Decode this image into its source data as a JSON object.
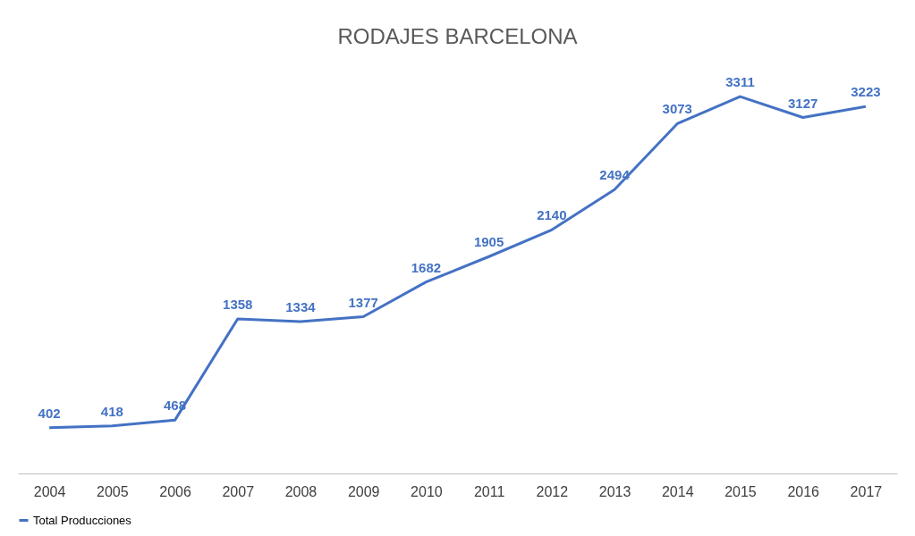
{
  "chart_data": {
    "type": "line",
    "title": "RODAJES BARCELONA",
    "categories": [
      "2004",
      "2005",
      "2006",
      "2007",
      "2008",
      "2009",
      "2010",
      "2011",
      "2012",
      "2013",
      "2014",
      "2015",
      "2016",
      "2017"
    ],
    "series": [
      {
        "name": "Total Producciones",
        "color": "#4472c4",
        "values": [
          402,
          418,
          468,
          1358,
          1334,
          1377,
          1682,
          1905,
          2140,
          2494,
          3073,
          3311,
          3127,
          3223
        ]
      }
    ],
    "data_labels": true,
    "legend": "bottom",
    "grid": false,
    "marker": "none",
    "line_style": "solid",
    "tick_labels": "x"
  }
}
